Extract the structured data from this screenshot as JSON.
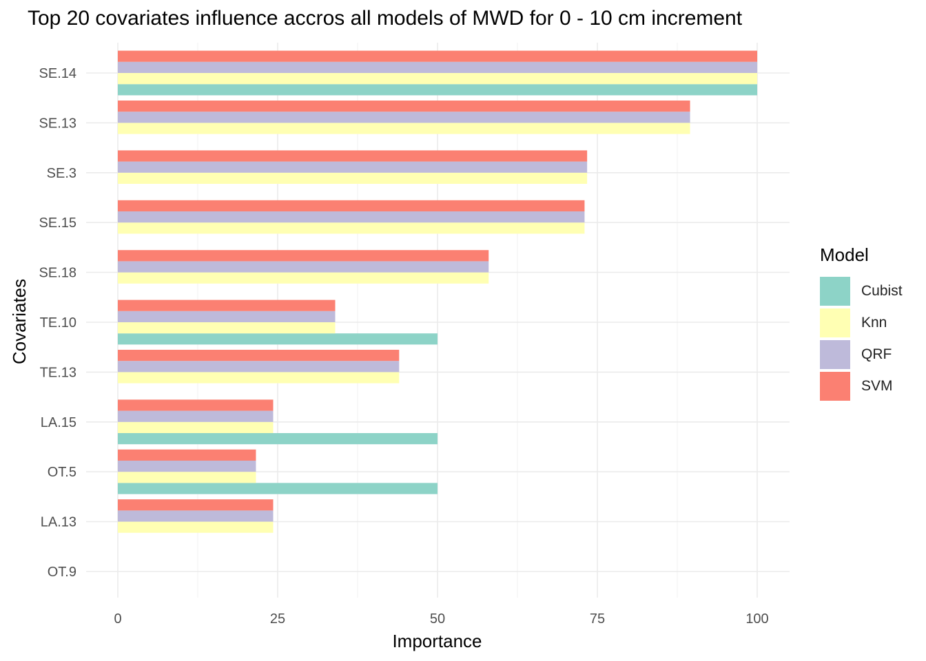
{
  "chart_data": {
    "type": "bar",
    "orientation": "horizontal",
    "title": "Top 20 covariates influence accros all models of MWD for 0 - 10 cm increment",
    "xlabel": "Importance",
    "ylabel": "Covariates",
    "xlim": [
      0,
      100
    ],
    "xticks": [
      "0",
      "25",
      "50",
      "75",
      "100"
    ],
    "grid": true,
    "legend_title": "Model",
    "legend_position": "right",
    "categories": [
      "SE.14",
      "SE.13",
      "SE.3",
      "SE.15",
      "SE.18",
      "TE.10",
      "TE.13",
      "LA.15",
      "OT.5",
      "LA.13",
      "OT.9"
    ],
    "series": [
      {
        "name": "Cubist",
        "color": "#8DD3C7",
        "values": [
          100,
          null,
          null,
          null,
          null,
          50,
          null,
          50,
          50,
          null,
          null
        ]
      },
      {
        "name": "Knn",
        "color": "#FFFFB3",
        "values": [
          100,
          89.5,
          73.4,
          73,
          58,
          34,
          44,
          24.3,
          21.6,
          24.3,
          null
        ]
      },
      {
        "name": "QRF",
        "color": "#BEBADA",
        "values": [
          100,
          89.5,
          73.4,
          73,
          58,
          34,
          44,
          24.3,
          21.6,
          24.3,
          null
        ]
      },
      {
        "name": "SVM",
        "color": "#FB8072",
        "values": [
          100,
          89.5,
          73.4,
          73,
          58,
          34,
          44,
          24.3,
          21.6,
          24.3,
          null
        ]
      }
    ]
  }
}
